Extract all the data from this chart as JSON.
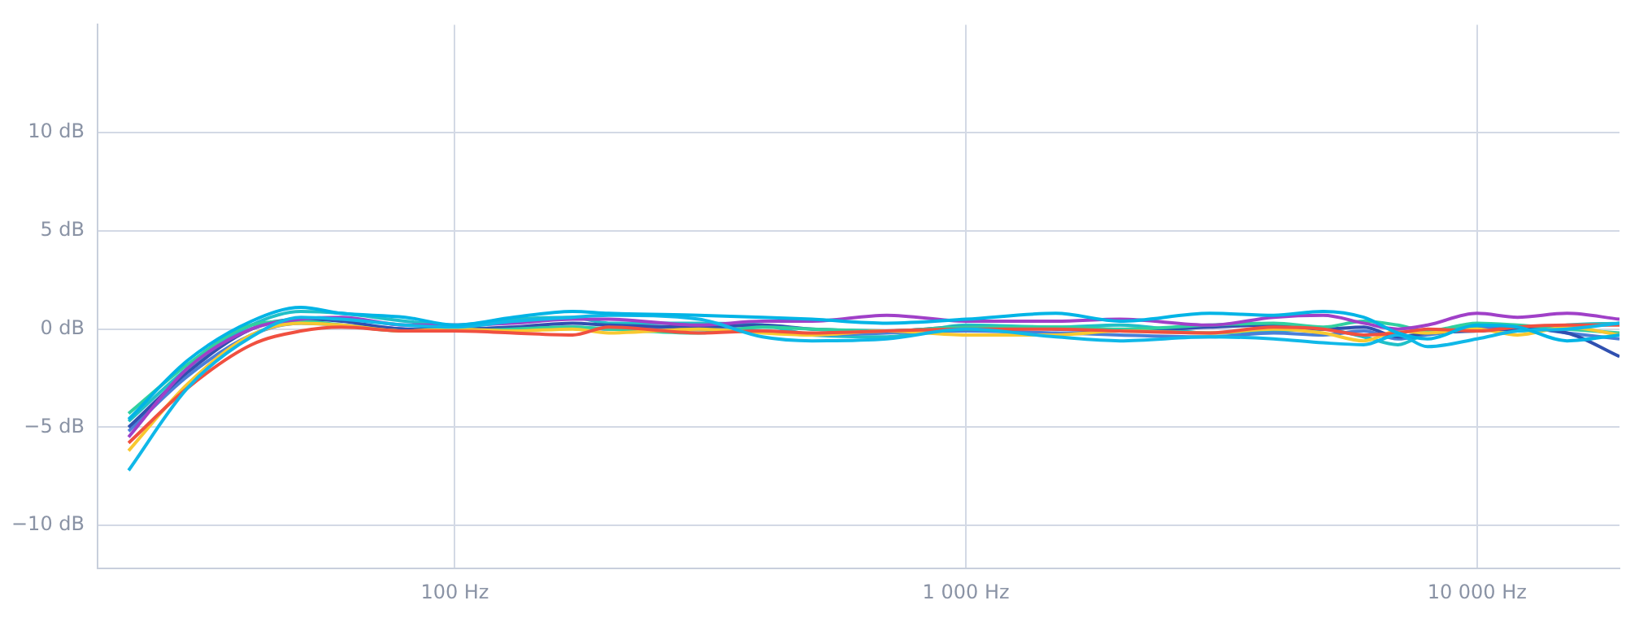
{
  "chart_data": {
    "type": "line",
    "log": "x",
    "grid": true,
    "legend": false,
    "marker": "none",
    "line_style": "solid",
    "x": [
      23,
      30,
      40,
      50,
      60,
      80,
      100,
      130,
      170,
      200,
      300,
      400,
      500,
      700,
      1000,
      1500,
      2000,
      3000,
      4000,
      5000,
      6000,
      7000,
      8000,
      10000,
      12000,
      15000,
      19000
    ],
    "xlim": [
      20,
      19000
    ],
    "ylim": [
      -12.2,
      15.5
    ],
    "xticks": [
      {
        "value": 100,
        "label": "100 Hz"
      },
      {
        "value": 1000,
        "label": "1 000 Hz"
      },
      {
        "value": 10000,
        "label": "10 000 Hz"
      }
    ],
    "yticks": [
      {
        "value": -10,
        "label": "−10 dB"
      },
      {
        "value": -5,
        "label": "−5 dB"
      },
      {
        "value": 0,
        "label": "0 dB"
      },
      {
        "value": 5,
        "label": "5 dB"
      },
      {
        "value": 10,
        "label": "10 dB"
      }
    ],
    "series": [
      {
        "color": "#00b4e6",
        "values": [
          -4.6,
          -1.6,
          0.4,
          1.1,
          0.8,
          0.6,
          0.2,
          0.6,
          0.9,
          0.8,
          0.7,
          0.6,
          0.5,
          0.3,
          0.5,
          0.8,
          0.4,
          0.8,
          0.7,
          0.9,
          0.6,
          -0.2,
          -0.5,
          0.2,
          0.1,
          -0.6,
          -0.3
        ]
      },
      {
        "color": "#10b8e8",
        "values": [
          -7.2,
          -3.0,
          -0.4,
          0.6,
          0.5,
          0.2,
          0.1,
          0.4,
          0.6,
          0.7,
          0.5,
          -0.4,
          -0.6,
          -0.5,
          0.0,
          -0.4,
          -0.6,
          -0.4,
          -0.5,
          -0.7,
          -0.8,
          -0.3,
          -0.9,
          -0.5,
          -0.1,
          0.0,
          0.3
        ]
      },
      {
        "color": "#a040c8",
        "values": [
          -5.5,
          -2.0,
          0.0,
          0.5,
          0.6,
          0.2,
          0.2,
          0.3,
          0.5,
          0.5,
          0.2,
          0.4,
          0.4,
          0.7,
          0.4,
          0.4,
          0.5,
          0.2,
          0.6,
          0.7,
          0.3,
          0.0,
          0.2,
          0.8,
          0.6,
          0.8,
          0.5
        ]
      },
      {
        "color": "#f05040",
        "values": [
          -5.8,
          -3.0,
          -0.8,
          -0.1,
          0.1,
          -0.1,
          -0.1,
          -0.2,
          -0.3,
          0.1,
          -0.2,
          -0.1,
          -0.2,
          -0.1,
          0.0,
          0.0,
          -0.1,
          -0.2,
          0.1,
          0.0,
          -0.3,
          -0.2,
          0.0,
          -0.1,
          0.1,
          0.2,
          0.2
        ]
      },
      {
        "color": "#f8c830",
        "values": [
          -6.2,
          -2.8,
          -0.3,
          0.3,
          0.2,
          -0.1,
          0.0,
          -0.1,
          0.0,
          -0.2,
          0.0,
          -0.2,
          -0.3,
          -0.1,
          -0.3,
          -0.3,
          -0.1,
          -0.2,
          0.0,
          -0.2,
          -0.6,
          -0.1,
          -0.2,
          0.0,
          -0.3,
          0.1,
          -0.3
        ]
      },
      {
        "color": "#30d0a0",
        "values": [
          -4.3,
          -1.8,
          0.2,
          0.4,
          0.2,
          -0.1,
          -0.1,
          0.0,
          0.1,
          0.0,
          -0.2,
          0.1,
          0.0,
          -0.1,
          0.1,
          0.1,
          0.0,
          0.2,
          0.3,
          0.1,
          0.4,
          0.2,
          -0.1,
          0.3,
          0.2,
          0.0,
          -0.2
        ]
      },
      {
        "color": "#3050b0",
        "values": [
          -5.0,
          -2.2,
          0.0,
          0.5,
          0.4,
          0.0,
          0.0,
          0.1,
          0.3,
          0.2,
          0.1,
          0.2,
          0.0,
          -0.1,
          0.1,
          0.0,
          -0.1,
          0.1,
          0.2,
          0.0,
          0.1,
          -0.4,
          -0.2,
          -0.1,
          0.0,
          -0.2,
          -1.4
        ]
      },
      {
        "color": "#4a7fd8",
        "values": [
          -5.2,
          -2.4,
          -0.3,
          0.3,
          0.2,
          0.0,
          -0.1,
          0.0,
          0.1,
          0.0,
          0.0,
          -0.1,
          -0.3,
          -0.2,
          -0.1,
          -0.2,
          -0.3,
          -0.4,
          -0.2,
          -0.3,
          -0.1,
          -0.5,
          -0.3,
          0.0,
          0.1,
          -0.2,
          -0.5
        ]
      },
      {
        "color": "#20c0c8",
        "values": [
          -4.7,
          -2.0,
          0.2,
          0.9,
          0.8,
          0.4,
          0.2,
          0.5,
          0.6,
          0.3,
          0.3,
          0.2,
          -0.3,
          -0.4,
          0.2,
          0.1,
          0.2,
          -0.2,
          -0.1,
          0.0,
          -0.4,
          -0.8,
          -0.2,
          0.1,
          -0.1,
          0.2,
          0.3
        ]
      }
    ]
  }
}
